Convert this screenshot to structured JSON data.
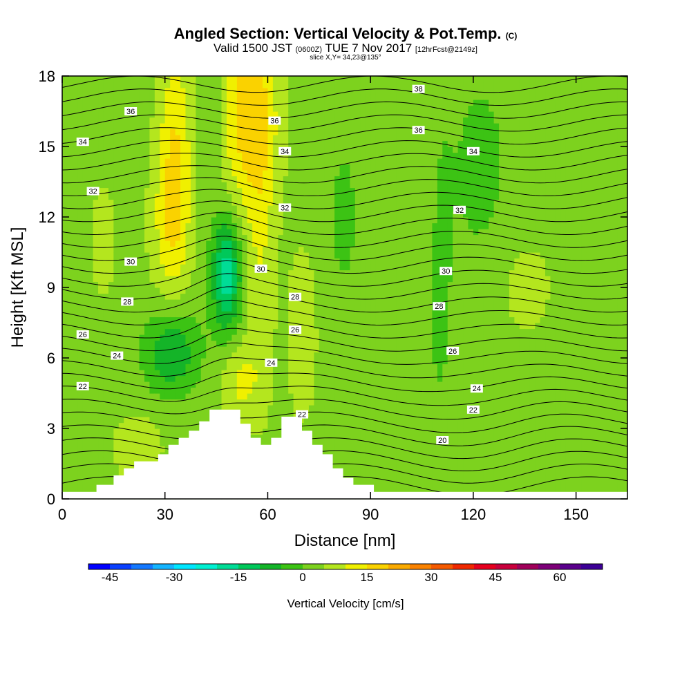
{
  "title": {
    "main": "Angled Section: Vertical Velocity & Pot.Temp.",
    "main_unit": "(C)",
    "valid_prefix": "Valid 1500 JST",
    "valid_z": "(0600Z)",
    "valid_date": "TUE 7 Nov 2017",
    "forecast": "[12hrFcst@2149z]",
    "slice": "slice X,Y= 34,23@135°"
  },
  "chart_data": {
    "type": "heatmap",
    "xlabel": "Distance [nm]",
    "ylabel": "Height [Kft MSL]",
    "xlim": [
      0,
      165
    ],
    "ylim": [
      0,
      18
    ],
    "x_ticks": [
      "0",
      "30",
      "60",
      "90",
      "120",
      "150"
    ],
    "y_ticks": [
      "0",
      "3",
      "6",
      "9",
      "12",
      "15",
      "18"
    ],
    "colorbar": {
      "title": "Vertical Velocity [cm/s]",
      "tick_labels": [
        "-45",
        "-30",
        "-15",
        "0",
        "15",
        "30",
        "45",
        "60"
      ],
      "range": [
        -50,
        70
      ],
      "step": 5,
      "colors": [
        "#0000ff",
        "#0a40ff",
        "#1478ff",
        "#14b4ff",
        "#00e6ff",
        "#00f0d2",
        "#00dc96",
        "#00c85a",
        "#14b428",
        "#3cc314",
        "#7dd21e",
        "#b4e61e",
        "#f0f000",
        "#fad200",
        "#faaa00",
        "#fa8200",
        "#f55a00",
        "#f02800",
        "#e6001e",
        "#c8003c",
        "#a0005a",
        "#7d0078",
        "#5a008c",
        "#3c0096"
      ]
    },
    "theta_labels": [
      {
        "text": "38",
        "x": 104,
        "y": 17.45
      },
      {
        "text": "36",
        "x": 20,
        "y": 16.5
      },
      {
        "text": "36",
        "x": 62,
        "y": 16.1
      },
      {
        "text": "36",
        "x": 104,
        "y": 15.7
      },
      {
        "text": "34",
        "x": 6,
        "y": 15.2
      },
      {
        "text": "34",
        "x": 65,
        "y": 14.8
      },
      {
        "text": "34",
        "x": 120,
        "y": 14.8
      },
      {
        "text": "32",
        "x": 9,
        "y": 13.1
      },
      {
        "text": "32",
        "x": 65,
        "y": 12.4
      },
      {
        "text": "32",
        "x": 116,
        "y": 12.3
      },
      {
        "text": "30",
        "x": 20,
        "y": 10.1
      },
      {
        "text": "30",
        "x": 58,
        "y": 9.8
      },
      {
        "text": "30",
        "x": 112,
        "y": 9.7
      },
      {
        "text": "28",
        "x": 19,
        "y": 8.4
      },
      {
        "text": "28",
        "x": 68,
        "y": 8.6
      },
      {
        "text": "28",
        "x": 110,
        "y": 8.2
      },
      {
        "text": "26",
        "x": 6,
        "y": 7.0
      },
      {
        "text": "26",
        "x": 68,
        "y": 7.2
      },
      {
        "text": "26",
        "x": 114,
        "y": 6.3
      },
      {
        "text": "24",
        "x": 16,
        "y": 6.1
      },
      {
        "text": "24",
        "x": 61,
        "y": 5.8
      },
      {
        "text": "24",
        "x": 121,
        "y": 4.7
      },
      {
        "text": "22",
        "x": 6,
        "y": 4.8
      },
      {
        "text": "22",
        "x": 70,
        "y": 3.6
      },
      {
        "text": "22",
        "x": 120,
        "y": 3.8
      },
      {
        "text": "20",
        "x": 111,
        "y": 2.5
      }
    ]
  }
}
